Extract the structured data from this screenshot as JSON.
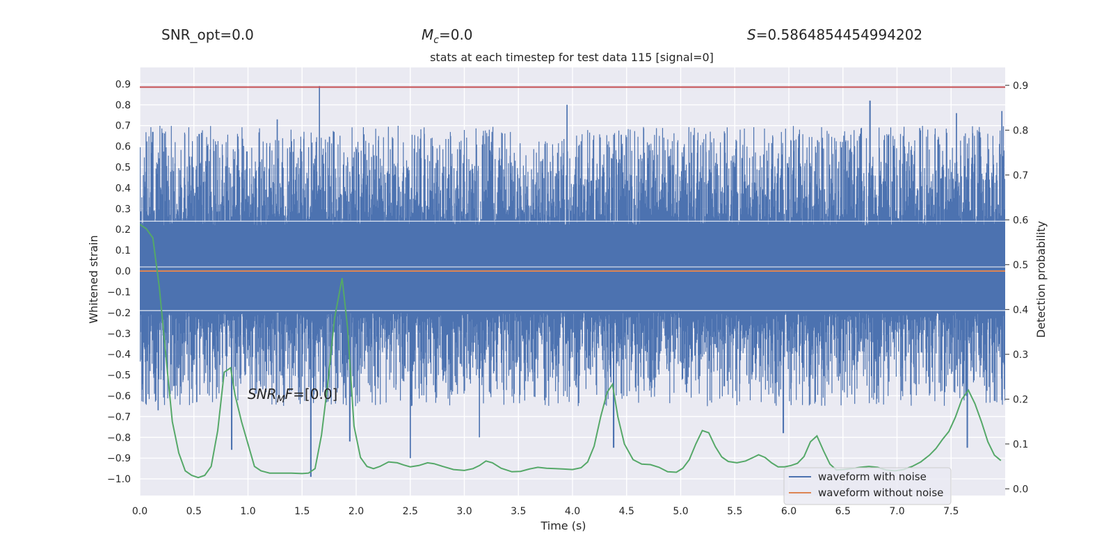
{
  "figure": {
    "stats": {
      "snr_opt_label": "SNR_opt=",
      "snr_opt_value": "0.0",
      "mc_symbol": "M",
      "mc_subscript": "c",
      "mc_value": "=0.0",
      "s_symbol": "S",
      "s_value": "=0.5864854454994202",
      "snr_mf_symbol": "SNR",
      "snr_mf_subscript": "M",
      "snr_mf_suffix": "F",
      "snr_mf_value": "=[0.0]"
    }
  },
  "colors": {
    "background": "#eaeaf2",
    "grid": "#ffffff",
    "noise_waveform": "#4c72b0",
    "clean_waveform": "#dd8452",
    "probability": "#55a868",
    "threshold": "#c44e52"
  },
  "chart_data": {
    "type": "line",
    "title": "stats at each timestep for test data 115 [signal=0]",
    "xlabel": "Time (s)",
    "ylabel": "Whitened strain",
    "y2label": "Detection probability",
    "xlim": [
      0,
      8
    ],
    "ylim": [
      -1.08,
      0.98
    ],
    "y2lim": [
      -0.015,
      0.94
    ],
    "grid": true,
    "legend_position": "lower-right",
    "x_ticks": [
      "0.0",
      "0.5",
      "1.0",
      "1.5",
      "2.0",
      "2.5",
      "3.0",
      "3.5",
      "4.0",
      "4.5",
      "5.0",
      "5.5",
      "6.0",
      "6.5",
      "7.0",
      "7.5"
    ],
    "y_ticks": [
      "0.9",
      "0.8",
      "0.7",
      "0.6",
      "0.5",
      "0.4",
      "0.3",
      "0.2",
      "0.1",
      "0.0",
      "-0.1",
      "-0.2",
      "-0.3",
      "-0.4",
      "-0.5",
      "-0.6",
      "-0.7",
      "-0.8",
      "-0.9",
      "-1.0"
    ],
    "y2_ticks": [
      "0.9",
      "0.8",
      "0.7",
      "0.6",
      "0.5",
      "0.4",
      "0.3",
      "0.2",
      "0.1",
      "0.0"
    ],
    "series": [
      {
        "name": "waveform with noise",
        "axis": "left",
        "style": "dense noise trace",
        "core_band": [
          -0.2,
          0.22
        ],
        "envelope_max": 0.89,
        "envelope_min": -0.99,
        "peaks": [
          {
            "x": 0.12,
            "y": 0.67
          },
          {
            "x": 0.55,
            "y": 0.66
          },
          {
            "x": 1.27,
            "y": 0.73
          },
          {
            "x": 1.66,
            "y": 0.89
          },
          {
            "x": 3.95,
            "y": 0.8
          },
          {
            "x": 6.75,
            "y": 0.82
          },
          {
            "x": 7.55,
            "y": 0.76
          },
          {
            "x": 7.97,
            "y": 0.77
          }
        ],
        "troughs": [
          {
            "x": 0.17,
            "y": -0.67
          },
          {
            "x": 0.85,
            "y": -0.86
          },
          {
            "x": 1.58,
            "y": -0.99
          },
          {
            "x": 1.94,
            "y": -0.82
          },
          {
            "x": 2.5,
            "y": -0.9
          },
          {
            "x": 3.14,
            "y": -0.8
          },
          {
            "x": 4.38,
            "y": -0.85
          },
          {
            "x": 5.95,
            "y": -0.78
          },
          {
            "x": 7.65,
            "y": -0.85
          }
        ]
      },
      {
        "name": "waveform without noise",
        "axis": "left",
        "x": [
          0,
          8
        ],
        "y": [
          0.0,
          0.0
        ]
      },
      {
        "name": "",
        "axis": "right",
        "x": [
          0.0,
          0.06,
          0.12,
          0.18,
          0.24,
          0.3,
          0.36,
          0.42,
          0.48,
          0.54,
          0.6,
          0.66,
          0.72,
          0.78,
          0.84,
          0.88,
          0.94,
          1.0,
          1.06,
          1.12,
          1.2,
          1.3,
          1.4,
          1.5,
          1.56,
          1.62,
          1.68,
          1.74,
          1.8,
          1.87,
          1.92,
          1.98,
          2.04,
          2.1,
          2.16,
          2.22,
          2.3,
          2.38,
          2.44,
          2.5,
          2.58,
          2.66,
          2.72,
          2.8,
          2.9,
          3.0,
          3.08,
          3.14,
          3.2,
          3.26,
          3.34,
          3.44,
          3.52,
          3.6,
          3.68,
          3.76,
          3.84,
          3.92,
          4.0,
          4.08,
          4.14,
          4.2,
          4.26,
          4.32,
          4.37,
          4.42,
          4.48,
          4.56,
          4.64,
          4.72,
          4.8,
          4.88,
          4.96,
          5.02,
          5.08,
          5.14,
          5.2,
          5.26,
          5.32,
          5.38,
          5.44,
          5.52,
          5.6,
          5.68,
          5.72,
          5.78,
          5.84,
          5.9,
          5.96,
          6.02,
          6.08,
          6.14,
          6.2,
          6.26,
          6.32,
          6.38,
          6.44,
          6.5,
          6.58,
          6.66,
          6.74,
          6.82,
          6.9,
          6.98,
          7.06,
          7.14,
          7.22,
          7.3,
          7.36,
          7.42,
          7.48,
          7.54,
          7.6,
          7.66,
          7.72,
          7.78,
          7.84,
          7.9,
          7.96
        ],
        "y": [
          0.59,
          0.58,
          0.56,
          0.45,
          0.3,
          0.15,
          0.08,
          0.04,
          0.03,
          0.025,
          0.03,
          0.05,
          0.13,
          0.26,
          0.27,
          0.21,
          0.15,
          0.1,
          0.05,
          0.04,
          0.035,
          0.035,
          0.035,
          0.034,
          0.035,
          0.045,
          0.12,
          0.24,
          0.38,
          0.47,
          0.36,
          0.14,
          0.07,
          0.05,
          0.045,
          0.05,
          0.06,
          0.058,
          0.053,
          0.049,
          0.052,
          0.058,
          0.056,
          0.05,
          0.043,
          0.041,
          0.045,
          0.052,
          0.062,
          0.058,
          0.046,
          0.038,
          0.039,
          0.044,
          0.048,
          0.046,
          0.045,
          0.044,
          0.043,
          0.047,
          0.06,
          0.095,
          0.16,
          0.215,
          0.233,
          0.16,
          0.1,
          0.065,
          0.055,
          0.054,
          0.048,
          0.038,
          0.037,
          0.046,
          0.065,
          0.1,
          0.13,
          0.125,
          0.094,
          0.071,
          0.061,
          0.058,
          0.062,
          0.071,
          0.076,
          0.07,
          0.058,
          0.049,
          0.049,
          0.052,
          0.057,
          0.072,
          0.105,
          0.118,
          0.085,
          0.055,
          0.042,
          0.043,
          0.045,
          0.048,
          0.05,
          0.048,
          0.042,
          0.04,
          0.043,
          0.05,
          0.06,
          0.075,
          0.09,
          0.11,
          0.128,
          0.16,
          0.2,
          0.22,
          0.19,
          0.15,
          0.105,
          0.075,
          0.063
        ]
      },
      {
        "name": "",
        "axis": "left",
        "x": [
          0,
          8
        ],
        "y": [
          0.885,
          0.885
        ]
      }
    ]
  }
}
